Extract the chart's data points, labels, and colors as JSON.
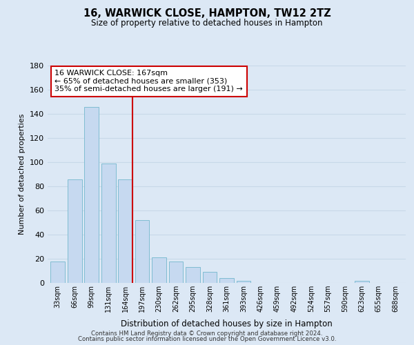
{
  "title": "16, WARWICK CLOSE, HAMPTON, TW12 2TZ",
  "subtitle": "Size of property relative to detached houses in Hampton",
  "xlabel": "Distribution of detached houses by size in Hampton",
  "ylabel": "Number of detached properties",
  "bar_labels": [
    "33sqm",
    "66sqm",
    "99sqm",
    "131sqm",
    "164sqm",
    "197sqm",
    "230sqm",
    "262sqm",
    "295sqm",
    "328sqm",
    "361sqm",
    "393sqm",
    "426sqm",
    "459sqm",
    "492sqm",
    "524sqm",
    "557sqm",
    "590sqm",
    "623sqm",
    "655sqm",
    "688sqm"
  ],
  "bar_values": [
    18,
    86,
    146,
    99,
    86,
    52,
    21,
    18,
    13,
    9,
    4,
    2,
    0,
    0,
    0,
    0,
    0,
    0,
    2,
    0,
    0
  ],
  "bar_color": "#c6d9f0",
  "bar_edge_color": "#7fbcd2",
  "grid_color": "#c8d8e8",
  "vline_color": "#cc0000",
  "annotation_title": "16 WARWICK CLOSE: 167sqm",
  "annotation_line1": "← 65% of detached houses are smaller (353)",
  "annotation_line2": "35% of semi-detached houses are larger (191) →",
  "annotation_box_color": "#ffffff",
  "annotation_box_edge": "#cc0000",
  "ylim": [
    0,
    180
  ],
  "yticks": [
    0,
    20,
    40,
    60,
    80,
    100,
    120,
    140,
    160,
    180
  ],
  "footer1": "Contains HM Land Registry data © Crown copyright and database right 2024.",
  "footer2": "Contains public sector information licensed under the Open Government Licence v3.0.",
  "bg_color": "#dce8f5"
}
